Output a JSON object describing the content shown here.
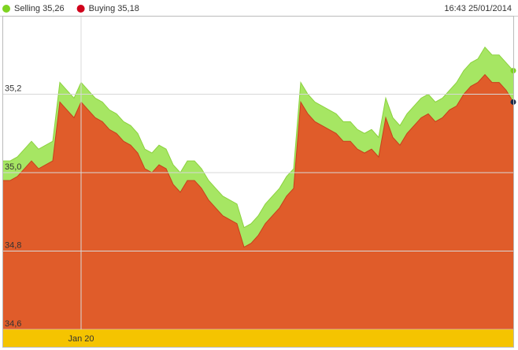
{
  "chart_data": {
    "type": "area",
    "timestamp": "16:43 25/01/2014",
    "categories": [
      null,
      null,
      null,
      null,
      null,
      null,
      null,
      null,
      null,
      null,
      null,
      "Jan 20",
      null,
      null,
      null,
      null,
      null,
      null,
      null,
      null,
      null,
      null,
      null,
      null,
      null,
      null,
      null,
      null,
      null,
      null,
      null,
      null,
      null,
      null,
      null,
      null,
      null,
      null,
      null,
      null,
      null,
      null,
      null,
      null,
      null,
      null,
      null,
      null,
      null,
      null,
      null,
      null,
      null,
      null,
      null,
      null,
      null,
      null,
      null,
      null,
      null,
      null,
      null,
      null,
      null,
      null,
      null,
      null,
      null,
      null,
      null,
      null,
      null
    ],
    "series": [
      {
        "name": "Selling 35,26",
        "color": "#a6e663",
        "line_color": "#8cd23f",
        "values": [
          35.03,
          35.03,
          35.04,
          35.06,
          35.08,
          35.06,
          35.07,
          35.08,
          35.23,
          35.21,
          35.19,
          35.23,
          35.21,
          35.19,
          35.18,
          35.16,
          35.15,
          35.13,
          35.12,
          35.1,
          35.06,
          35.05,
          35.07,
          35.06,
          35.02,
          35.0,
          35.03,
          35.03,
          35.01,
          34.98,
          34.96,
          34.94,
          34.93,
          34.92,
          34.86,
          34.87,
          34.89,
          34.92,
          34.94,
          34.96,
          34.99,
          35.01,
          35.23,
          35.2,
          35.18,
          35.17,
          35.16,
          35.15,
          35.13,
          35.13,
          35.11,
          35.1,
          35.11,
          35.09,
          35.19,
          35.14,
          35.12,
          35.15,
          35.17,
          35.19,
          35.2,
          35.18,
          35.19,
          35.21,
          35.23,
          35.26,
          35.28,
          35.29,
          35.32,
          35.3,
          35.3,
          35.28,
          35.26
        ]
      },
      {
        "name": "Buying 35,18",
        "color": "#e05c2a",
        "line_color": "#c8401c",
        "values": [
          34.98,
          34.98,
          34.99,
          35.01,
          35.03,
          35.01,
          35.02,
          35.03,
          35.18,
          35.16,
          35.14,
          35.18,
          35.16,
          35.14,
          35.13,
          35.11,
          35.1,
          35.08,
          35.07,
          35.05,
          35.01,
          35.0,
          35.02,
          35.01,
          34.97,
          34.95,
          34.98,
          34.98,
          34.96,
          34.93,
          34.91,
          34.89,
          34.88,
          34.87,
          34.81,
          34.82,
          34.84,
          34.87,
          34.89,
          34.91,
          34.94,
          34.96,
          35.18,
          35.15,
          35.13,
          35.12,
          35.11,
          35.1,
          35.08,
          35.08,
          35.06,
          35.05,
          35.06,
          35.04,
          35.14,
          35.09,
          35.07,
          35.1,
          35.12,
          35.14,
          35.15,
          35.13,
          35.14,
          35.16,
          35.17,
          35.2,
          35.22,
          35.23,
          35.25,
          35.23,
          35.23,
          35.21,
          35.18
        ]
      }
    ],
    "legend_dot_colors": [
      "#7ed321",
      "#d0021b"
    ],
    "end_dot_colors": [
      "#7ed321",
      "#1a2a4a"
    ],
    "ylim": [
      34.6,
      35.4
    ],
    "yticks": [
      {
        "value": 34.6,
        "label": "34,6"
      },
      {
        "value": 34.8,
        "label": "34,8"
      },
      {
        "value": 35.0,
        "label": "35,0"
      },
      {
        "value": 35.2,
        "label": "35,2"
      }
    ],
    "grid": true
  }
}
